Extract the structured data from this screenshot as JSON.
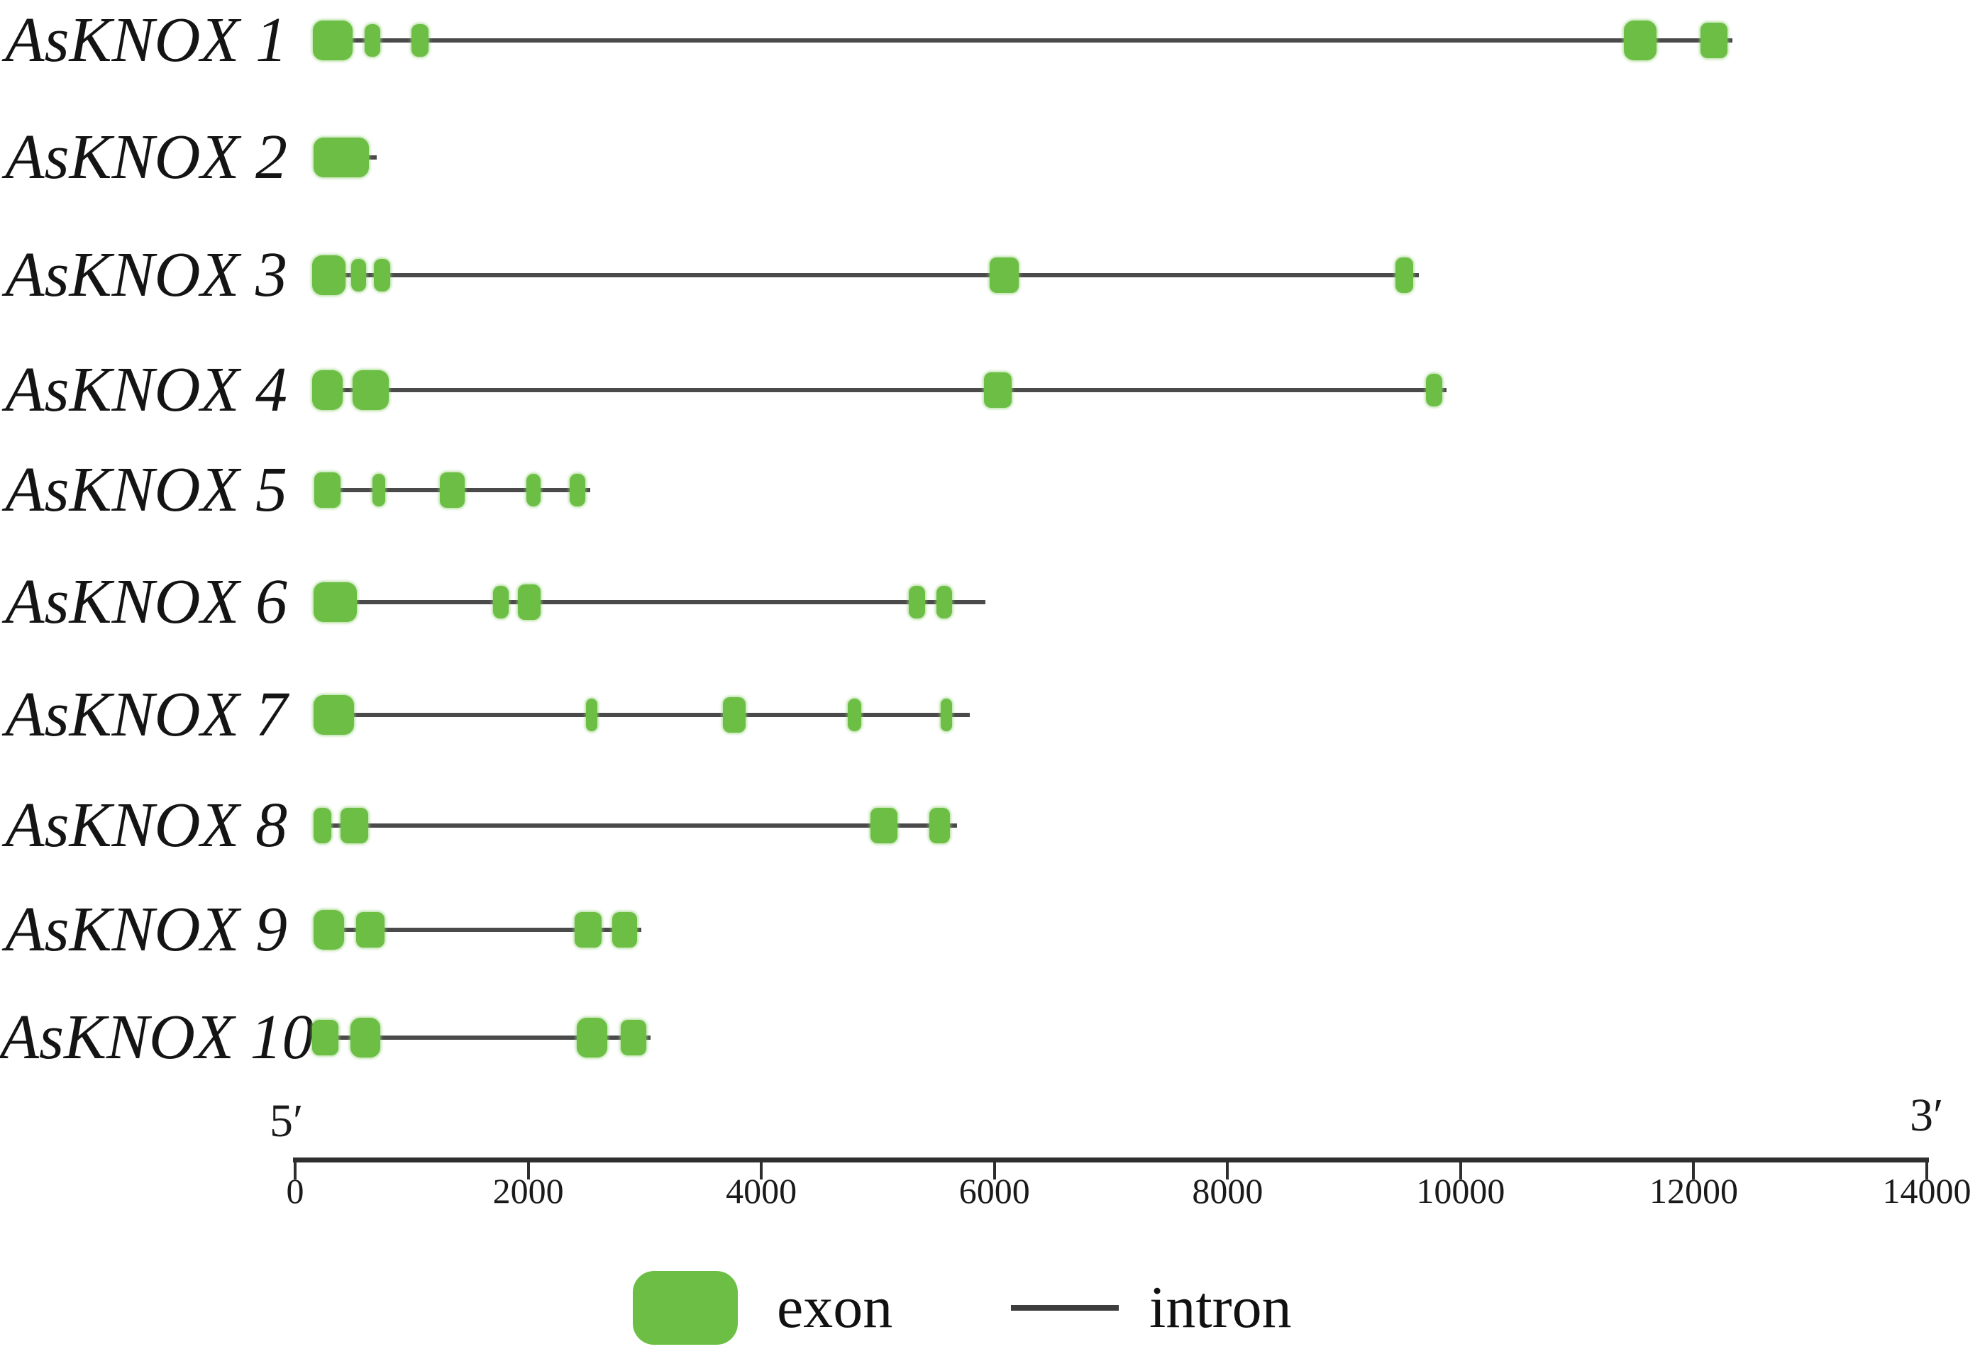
{
  "figure": {
    "five_prime_label": "5′",
    "three_prime_label": "3′",
    "legend": {
      "exon_label": "exon",
      "intron_label": "intron"
    },
    "colors": {
      "exon_green": "#6cbe45",
      "intron_gray": "#4a4a4a",
      "axis_black": "#2e2e2e",
      "text_black": "#141414"
    }
  },
  "chart_data": {
    "type": "gene-structure",
    "description": "Exon-intron structures of AsKNOX genes drawn to scale in base pairs from 5prime to 3prime",
    "x_axis": {
      "min": 0,
      "max": 14000,
      "tick_interval": 2000,
      "ticks": [
        0,
        2000,
        4000,
        6000,
        8000,
        10000,
        12000,
        14000
      ]
    },
    "legend_entries": [
      {
        "label": "exon",
        "style": "green-rounded-box"
      },
      {
        "label": "intron",
        "style": "black-line"
      }
    ],
    "genes": [
      {
        "name": "AsKNOX 1",
        "length": 12330,
        "exons": [
          [
            150,
            495
          ],
          [
            595,
            730
          ],
          [
            1000,
            1145
          ],
          [
            11400,
            11680
          ],
          [
            12055,
            12290
          ]
        ]
      },
      {
        "name": "AsKNOX 2",
        "length": 700,
        "exons": [
          [
            160,
            635
          ]
        ]
      },
      {
        "name": "AsKNOX 3",
        "length": 9640,
        "exons": [
          [
            145,
            430
          ],
          [
            480,
            610
          ],
          [
            675,
            815
          ],
          [
            5960,
            6210
          ],
          [
            9440,
            9590
          ]
        ]
      },
      {
        "name": "AsKNOX 4",
        "length": 9880,
        "exons": [
          [
            145,
            410
          ],
          [
            490,
            805
          ],
          [
            5910,
            6150
          ],
          [
            9700,
            9845
          ]
        ]
      },
      {
        "name": "AsKNOX 5",
        "length": 2530,
        "exons": [
          [
            165,
            390
          ],
          [
            665,
            775
          ],
          [
            1240,
            1455
          ],
          [
            1985,
            2105
          ],
          [
            2355,
            2490
          ]
        ]
      },
      {
        "name": "AsKNOX 6",
        "length": 5920,
        "exons": [
          [
            160,
            530
          ],
          [
            1700,
            1830
          ],
          [
            1910,
            2105
          ],
          [
            5265,
            5405
          ],
          [
            5500,
            5635
          ]
        ]
      },
      {
        "name": "AsKNOX 7",
        "length": 5790,
        "exons": [
          [
            160,
            505
          ],
          [
            2495,
            2595
          ],
          [
            3670,
            3865
          ],
          [
            4740,
            4855
          ],
          [
            5540,
            5635
          ]
        ]
      },
      {
        "name": "AsKNOX 8",
        "length": 5680,
        "exons": [
          [
            160,
            310
          ],
          [
            390,
            625
          ],
          [
            4935,
            5165
          ],
          [
            5440,
            5620
          ]
        ]
      },
      {
        "name": "AsKNOX 9",
        "length": 2970,
        "exons": [
          [
            160,
            420
          ],
          [
            525,
            765
          ],
          [
            2400,
            2630
          ],
          [
            2720,
            2935
          ]
        ]
      },
      {
        "name": "AsKNOX 10",
        "length": 3050,
        "exons": [
          [
            145,
            370
          ],
          [
            475,
            730
          ],
          [
            2415,
            2680
          ],
          [
            2795,
            3015
          ]
        ]
      }
    ]
  }
}
